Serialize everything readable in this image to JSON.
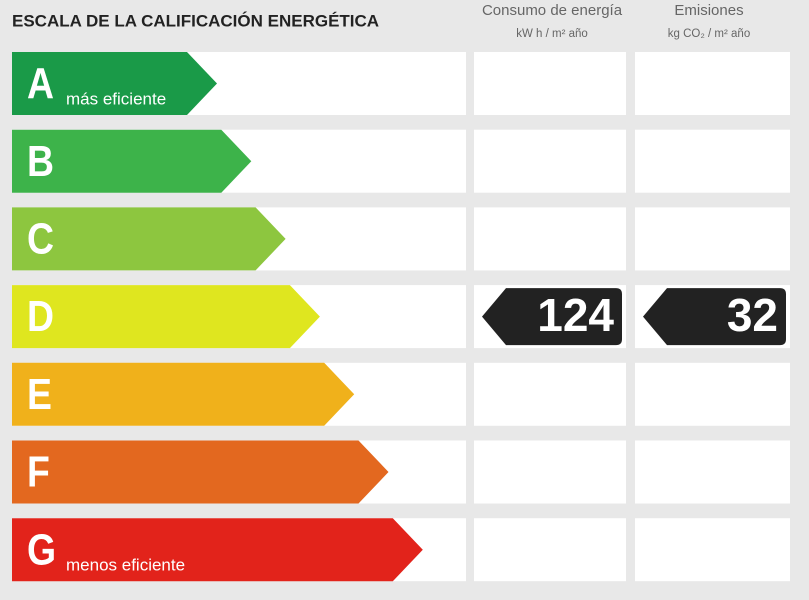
{
  "header": {
    "title": "ESCALA DE LA CALIFICACIÓN ENERGÉTICA"
  },
  "columns": [
    {
      "title": "Consumo de energía",
      "unit": "kW h / m² año"
    },
    {
      "title": "Emisiones",
      "unit": "kg CO₂ / m² año"
    }
  ],
  "rows": [
    {
      "letter": "A",
      "note": "más eficiente",
      "color": "#1a9a48"
    },
    {
      "letter": "B",
      "color": "#3db34a"
    },
    {
      "letter": "C",
      "color": "#8dc63f"
    },
    {
      "letter": "D",
      "color": "#dfe61f"
    },
    {
      "letter": "E",
      "color": "#f0b11b"
    },
    {
      "letter": "F",
      "color": "#e3681f"
    },
    {
      "letter": "G",
      "note": "menos eficiente",
      "color": "#e2231b"
    }
  ],
  "ratings": [
    {
      "letter": "D",
      "value": 124
    },
    {
      "letter": "D",
      "value": 32
    }
  ]
}
